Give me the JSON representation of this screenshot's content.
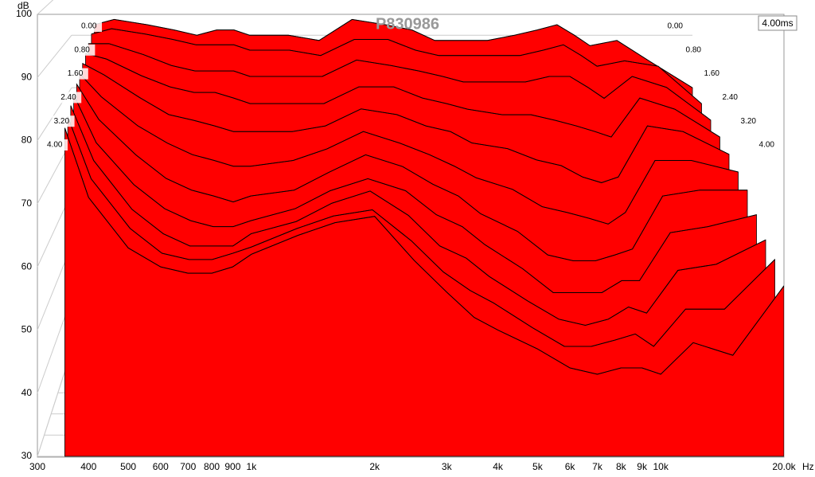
{
  "chart_data": {
    "type": "waterfall",
    "title": "P830986",
    "y_label": "dB",
    "x_unit": "Hz",
    "time_range_label": "4.00ms",
    "log_x": true,
    "grid": true,
    "color": "#ff0000",
    "x": [
      350,
      400,
      500,
      600,
      700,
      800,
      900,
      1000,
      1300,
      1600,
      2000,
      2500,
      3000,
      3500,
      4000,
      5000,
      6000,
      7000,
      8000,
      9000,
      10000,
      12000,
      15000,
      20000
    ],
    "xlim": [
      300,
      20000
    ],
    "xticks": [
      300,
      400,
      500,
      600,
      700,
      800,
      900,
      {
        "value": 1000,
        "label": "1k"
      },
      {
        "value": 2000,
        "label": "2k"
      },
      {
        "value": 3000,
        "label": "3k"
      },
      {
        "value": 4000,
        "label": "4k"
      },
      {
        "value": 5000,
        "label": "5k"
      },
      {
        "value": 6000,
        "label": "6k"
      },
      {
        "value": 7000,
        "label": "7k"
      },
      {
        "value": 8000,
        "label": "8k"
      },
      {
        "value": 9000,
        "label": "9k"
      },
      {
        "value": 10000,
        "label": "10k"
      },
      {
        "value": 20000,
        "label": "20.0k"
      }
    ],
    "ylim": [
      30,
      100
    ],
    "yticks": [
      30,
      40,
      50,
      60,
      70,
      80,
      90,
      100
    ],
    "tlim": [
      0,
      4
    ],
    "tticks": [
      {
        "value": 0,
        "label": "0.00"
      },
      {
        "value": 0.8,
        "label": "0.80"
      },
      {
        "value": 1.6,
        "label": "1.60"
      },
      {
        "value": 2.4,
        "label": "2.40"
      },
      {
        "value": 3.2,
        "label": "3.20"
      },
      {
        "value": 4,
        "label": "4.00"
      }
    ],
    "series": [
      {
        "t": 0,
        "values": [
          92,
          93,
          92,
          91,
          90,
          91,
          91,
          90,
          90,
          89,
          93,
          92,
          91,
          89,
          89,
          89,
          90,
          91,
          92,
          90,
          88,
          89,
          85,
          80
        ]
      },
      {
        "t": 0.4,
        "values": [
          91,
          92,
          91,
          90,
          89,
          89,
          89,
          88,
          88,
          87,
          90,
          90,
          88,
          87,
          87,
          87,
          87,
          88,
          89,
          87,
          85,
          86,
          85,
          78
        ]
      },
      {
        "t": 0.8,
        "values": [
          90,
          90,
          88,
          86,
          85,
          85,
          85,
          84,
          84,
          84,
          87,
          86,
          85,
          84,
          83,
          83,
          83,
          84,
          84,
          82,
          80,
          84,
          82,
          76
        ]
      },
      {
        "t": 1.2,
        "values": [
          89,
          88,
          85,
          83,
          82,
          82,
          81,
          80,
          80,
          80,
          83,
          83,
          81,
          80,
          79,
          78,
          78,
          77,
          76,
          75,
          74,
          81,
          79,
          74
        ]
      },
      {
        "t": 1.6,
        "values": [
          88,
          86,
          82,
          79,
          78,
          77,
          76,
          76,
          76,
          77,
          80,
          79,
          77,
          76,
          74,
          73,
          71,
          70,
          68,
          67,
          68,
          77,
          76,
          72
        ]
      },
      {
        "t": 2.0,
        "values": [
          87,
          83,
          78,
          75,
          73,
          72,
          71,
          71,
          72,
          74,
          77,
          75,
          73,
          71,
          69,
          67,
          64,
          63,
          62,
          61,
          63,
          72,
          72,
          70
        ]
      },
      {
        "t": 2.4,
        "values": [
          86,
          80,
          74,
          70,
          68,
          67,
          66,
          67,
          68,
          71,
          74,
          72,
          69,
          67,
          64,
          61,
          57,
          56,
          56,
          57,
          58,
          67,
          68,
          68
        ]
      },
      {
        "t": 2.8,
        "values": [
          85,
          77,
          70,
          66,
          64,
          63,
          63,
          64,
          66,
          69,
          71,
          69,
          65,
          63,
          60,
          56,
          52,
          52,
          52,
          54,
          54,
          62,
          63,
          65
        ]
      },
      {
        "t": 3.2,
        "values": [
          84,
          75,
          67,
          63,
          61,
          61,
          61,
          63,
          65,
          68,
          70,
          66,
          61,
          59,
          56,
          52,
          49,
          48,
          49,
          51,
          50,
          57,
          58,
          62
        ]
      },
      {
        "t": 3.6,
        "values": [
          83,
          73,
          65,
          61,
          60,
          60,
          61,
          62,
          65,
          67,
          68,
          63,
          58,
          55,
          53,
          49,
          46,
          46,
          47,
          48,
          46,
          52,
          52,
          60
        ]
      },
      {
        "t": 4,
        "values": [
          82,
          71,
          63,
          60,
          59,
          59,
          60,
          62,
          65,
          67,
          68,
          61,
          56,
          52,
          50,
          47,
          44,
          43,
          44,
          44,
          43,
          48,
          46,
          57
        ]
      }
    ]
  }
}
